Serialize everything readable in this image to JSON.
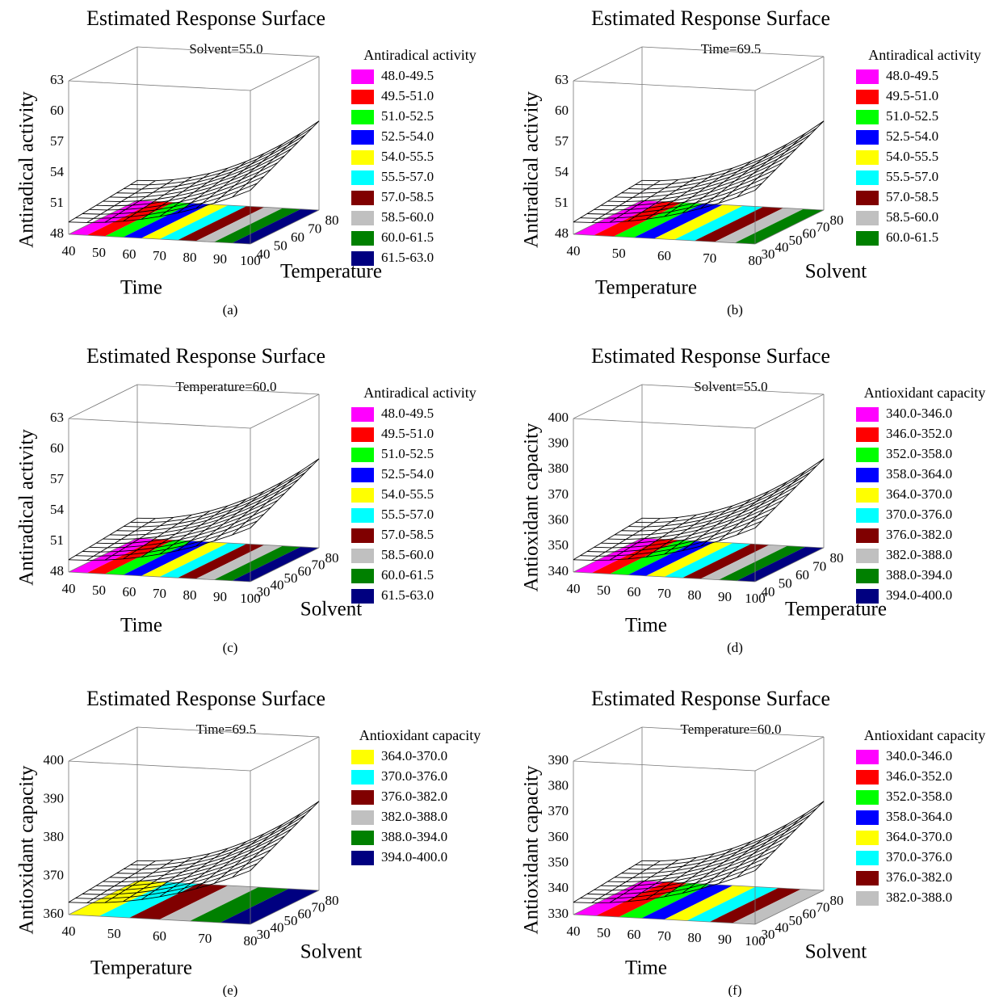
{
  "panels": [
    {
      "title": "Estimated Response Surface",
      "subtitle": "Solvent=55.0",
      "zlabel": "Antiradical activity",
      "zticks": [
        "48",
        "51",
        "54",
        "57",
        "60",
        "63"
      ],
      "xlabel": "Time",
      "xticks": [
        "40",
        "50",
        "60",
        "70",
        "80",
        "90",
        "100"
      ],
      "ylabel": "Temperature",
      "yticks": [
        "40",
        "50",
        "60",
        "70",
        "80"
      ],
      "legend_title": "Antiradical activity",
      "legend": [
        {
          "label": "48.0-49.5",
          "color": "#ff00ff"
        },
        {
          "label": "49.5-51.0",
          "color": "#ff0000"
        },
        {
          "label": "51.0-52.5",
          "color": "#00ff00"
        },
        {
          "label": "52.5-54.0",
          "color": "#0000ff"
        },
        {
          "label": "54.0-55.5",
          "color": "#ffff00"
        },
        {
          "label": "55.5-57.0",
          "color": "#00ffff"
        },
        {
          "label": "57.0-58.5",
          "color": "#800000"
        },
        {
          "label": "58.5-60.0",
          "color": "#c0c0c0"
        },
        {
          "label": "60.0-61.5",
          "color": "#008000"
        },
        {
          "label": "61.5-63.0",
          "color": "#000080"
        }
      ],
      "caption": "(a)"
    },
    {
      "title": "Estimated Response Surface",
      "subtitle": "Time=69.5",
      "zlabel": "Antiradical activity",
      "zticks": [
        "48",
        "51",
        "54",
        "57",
        "60",
        "63"
      ],
      "xlabel": "Temperature",
      "xticks": [
        "40",
        "50",
        "60",
        "70",
        "80"
      ],
      "ylabel": "Solvent",
      "yticks": [
        "30",
        "40",
        "50",
        "60",
        "70",
        "80"
      ],
      "legend_title": "Antiradical activity",
      "legend": [
        {
          "label": "48.0-49.5",
          "color": "#ff00ff"
        },
        {
          "label": "49.5-51.0",
          "color": "#ff0000"
        },
        {
          "label": "51.0-52.5",
          "color": "#00ff00"
        },
        {
          "label": "52.5-54.0",
          "color": "#0000ff"
        },
        {
          "label": "54.0-55.5",
          "color": "#ffff00"
        },
        {
          "label": "55.5-57.0",
          "color": "#00ffff"
        },
        {
          "label": "57.0-58.5",
          "color": "#800000"
        },
        {
          "label": "58.5-60.0",
          "color": "#c0c0c0"
        },
        {
          "label": "60.0-61.5",
          "color": "#008000"
        }
      ],
      "caption": "(b)"
    },
    {
      "title": "Estimated Response Surface",
      "subtitle": "Temperature=60.0",
      "zlabel": "Antiradical activity",
      "zticks": [
        "48",
        "51",
        "54",
        "57",
        "60",
        "63"
      ],
      "xlabel": "Time",
      "xticks": [
        "40",
        "50",
        "60",
        "70",
        "80",
        "90",
        "100"
      ],
      "ylabel": "Solvent",
      "yticks": [
        "30",
        "40",
        "50",
        "60",
        "70",
        "80"
      ],
      "legend_title": "Antiradical activity",
      "legend": [
        {
          "label": "48.0-49.5",
          "color": "#ff00ff"
        },
        {
          "label": "49.5-51.0",
          "color": "#ff0000"
        },
        {
          "label": "51.0-52.5",
          "color": "#00ff00"
        },
        {
          "label": "52.5-54.0",
          "color": "#0000ff"
        },
        {
          "label": "54.0-55.5",
          "color": "#ffff00"
        },
        {
          "label": "55.5-57.0",
          "color": "#00ffff"
        },
        {
          "label": "57.0-58.5",
          "color": "#800000"
        },
        {
          "label": "58.5-60.0",
          "color": "#c0c0c0"
        },
        {
          "label": "60.0-61.5",
          "color": "#008000"
        },
        {
          "label": "61.5-63.0",
          "color": "#000080"
        }
      ],
      "caption": "(c)"
    },
    {
      "title": "Estimated Response Surface",
      "subtitle": "Solvent=55.0",
      "zlabel": "Antioxidant capacity",
      "zticks": [
        "340",
        "350",
        "360",
        "370",
        "380",
        "390",
        "400"
      ],
      "xlabel": "Time",
      "xticks": [
        "40",
        "50",
        "60",
        "70",
        "80",
        "90",
        "100"
      ],
      "ylabel": "Temperature",
      "yticks": [
        "40",
        "50",
        "60",
        "70",
        "80"
      ],
      "legend_title": "Antioxidant capacity",
      "legend": [
        {
          "label": "340.0-346.0",
          "color": "#ff00ff"
        },
        {
          "label": "346.0-352.0",
          "color": "#ff0000"
        },
        {
          "label": "352.0-358.0",
          "color": "#00ff00"
        },
        {
          "label": "358.0-364.0",
          "color": "#0000ff"
        },
        {
          "label": "364.0-370.0",
          "color": "#ffff00"
        },
        {
          "label": "370.0-376.0",
          "color": "#00ffff"
        },
        {
          "label": "376.0-382.0",
          "color": "#800000"
        },
        {
          "label": "382.0-388.0",
          "color": "#c0c0c0"
        },
        {
          "label": "388.0-394.0",
          "color": "#008000"
        },
        {
          "label": "394.0-400.0",
          "color": "#000080"
        }
      ],
      "caption": "(d)"
    },
    {
      "title": "Estimated Response Surface",
      "subtitle": "Time=69.5",
      "zlabel": "Antioxidant capacity",
      "zticks": [
        "360",
        "370",
        "380",
        "390",
        "400"
      ],
      "xlabel": "Temperature",
      "xticks": [
        "40",
        "50",
        "60",
        "70",
        "80"
      ],
      "ylabel": "Solvent",
      "yticks": [
        "30",
        "40",
        "50",
        "60",
        "70",
        "80"
      ],
      "legend_title": "Antioxidant capacity",
      "legend": [
        {
          "label": "364.0-370.0",
          "color": "#ffff00"
        },
        {
          "label": "370.0-376.0",
          "color": "#00ffff"
        },
        {
          "label": "376.0-382.0",
          "color": "#800000"
        },
        {
          "label": "382.0-388.0",
          "color": "#c0c0c0"
        },
        {
          "label": "388.0-394.0",
          "color": "#008000"
        },
        {
          "label": "394.0-400.0",
          "color": "#000080"
        }
      ],
      "caption": "(e)"
    },
    {
      "title": "Estimated Response Surface",
      "subtitle": "Temperature=60.0",
      "zlabel": "Antioxidant capacity",
      "zticks": [
        "330",
        "340",
        "350",
        "360",
        "370",
        "380",
        "390"
      ],
      "xlabel": "Time",
      "xticks": [
        "40",
        "50",
        "60",
        "70",
        "80",
        "90",
        "100"
      ],
      "ylabel": "Solvent",
      "yticks": [
        "30",
        "40",
        "50",
        "60",
        "70",
        "80"
      ],
      "legend_title": "Antioxidant capacity",
      "legend": [
        {
          "label": "340.0-346.0",
          "color": "#ff00ff"
        },
        {
          "label": "346.0-352.0",
          "color": "#ff0000"
        },
        {
          "label": "352.0-358.0",
          "color": "#00ff00"
        },
        {
          "label": "358.0-364.0",
          "color": "#0000ff"
        },
        {
          "label": "364.0-370.0",
          "color": "#ffff00"
        },
        {
          "label": "370.0-376.0",
          "color": "#00ffff"
        },
        {
          "label": "376.0-382.0",
          "color": "#800000"
        },
        {
          "label": "382.0-388.0",
          "color": "#c0c0c0"
        }
      ],
      "caption": "(f)"
    }
  ]
}
